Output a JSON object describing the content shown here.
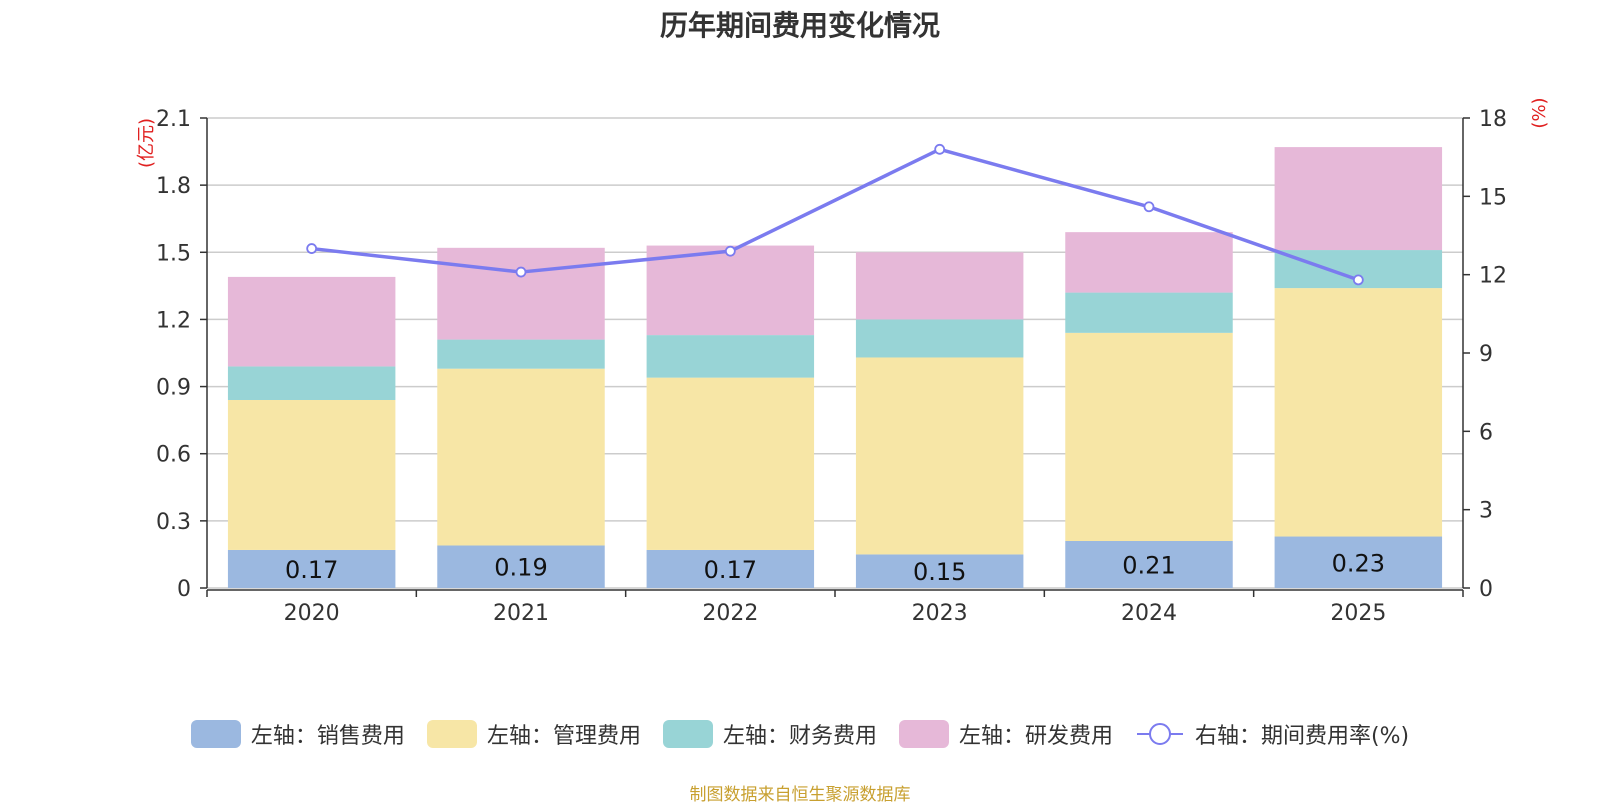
{
  "chart_data": {
    "type": "bar",
    "stacked": true,
    "title": "历年期间费用变化情况",
    "categories": [
      "2020",
      "2021",
      "2022",
      "2023",
      "2024",
      "2025"
    ],
    "y_left": {
      "unit_label": "(亿元)",
      "ticks": [
        "0",
        "0.3",
        "0.6",
        "0.9",
        "1.2",
        "1.5",
        "1.8",
        "2.1"
      ],
      "ylim": [
        0,
        2.1
      ]
    },
    "y_right": {
      "unit_label": "(%)",
      "ticks": [
        "0",
        "3",
        "6",
        "9",
        "12",
        "15",
        "18"
      ],
      "ylim": [
        0,
        18
      ]
    },
    "series": [
      {
        "name": "左轴：销售费用",
        "axis": "left",
        "kind": "bar",
        "color": "#9bb8e0",
        "values": [
          0.17,
          0.19,
          0.17,
          0.15,
          0.21,
          0.23
        ],
        "labels": [
          "0.17",
          "0.19",
          "0.17",
          "0.15",
          "0.21",
          "0.23"
        ]
      },
      {
        "name": "左轴：管理费用",
        "axis": "left",
        "kind": "bar",
        "color": "#f7e6a6",
        "values": [
          0.67,
          0.79,
          0.77,
          0.88,
          0.93,
          1.11
        ]
      },
      {
        "name": "左轴：财务费用",
        "axis": "left",
        "kind": "bar",
        "color": "#98d4d6",
        "values": [
          0.15,
          0.13,
          0.19,
          0.17,
          0.18,
          0.17
        ]
      },
      {
        "name": "左轴：研发费用",
        "axis": "left",
        "kind": "bar",
        "color": "#e6b8d8",
        "values": [
          0.4,
          0.41,
          0.4,
          0.3,
          0.27,
          0.46
        ]
      },
      {
        "name": "右轴：期间费用率(%)",
        "axis": "right",
        "kind": "line",
        "color": "#7b7bef",
        "values": [
          13.0,
          12.1,
          12.9,
          16.8,
          14.6,
          11.8
        ]
      }
    ]
  },
  "source": "制图数据来自恒生聚源数据库"
}
